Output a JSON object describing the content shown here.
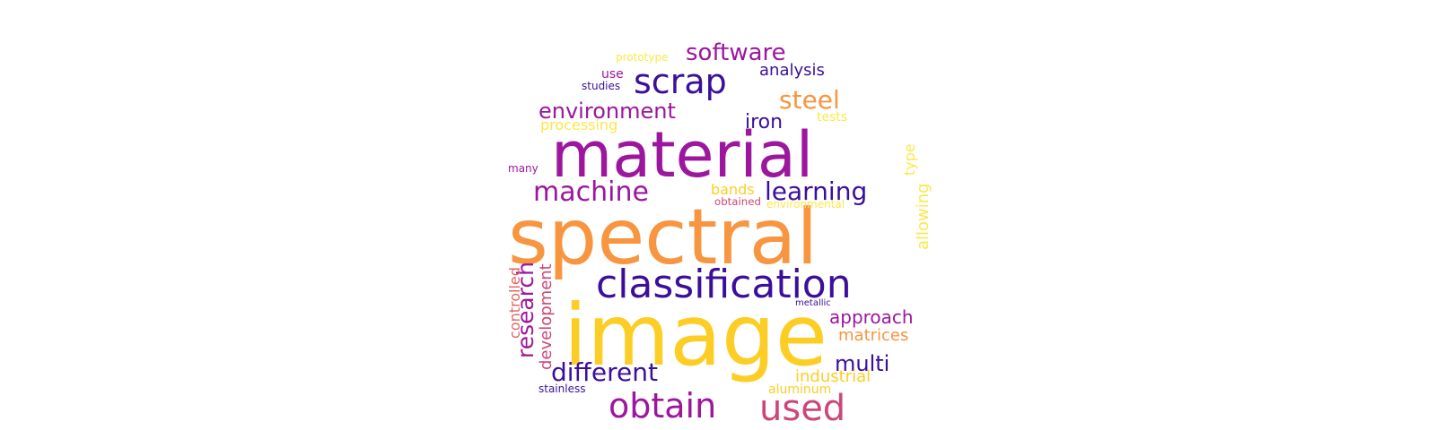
{
  "word_cloud": {
    "palette": {
      "purple": "#9c179e",
      "indigo": "#3b0f9a",
      "orange": "#f89540",
      "yellow": "#fcce25",
      "magenta": "#cc4778",
      "pink": "#e16462",
      "light_yellow": "#fde74c"
    },
    "words": [
      {
        "text": "spectral",
        "color": "orange"
      },
      {
        "text": "material",
        "color": "purple"
      },
      {
        "text": "image",
        "color": "yellow"
      },
      {
        "text": "classification",
        "color": "indigo"
      },
      {
        "text": "scrap",
        "color": "indigo"
      },
      {
        "text": "obtain",
        "color": "purple"
      },
      {
        "text": "used",
        "color": "magenta"
      },
      {
        "text": "machine",
        "color": "purple"
      },
      {
        "text": "learning",
        "color": "indigo"
      },
      {
        "text": "software",
        "color": "purple"
      },
      {
        "text": "environment",
        "color": "purple"
      },
      {
        "text": "steel",
        "color": "orange"
      },
      {
        "text": "iron",
        "color": "indigo"
      },
      {
        "text": "analysis",
        "color": "indigo"
      },
      {
        "text": "different",
        "color": "indigo"
      },
      {
        "text": "multi",
        "color": "indigo"
      },
      {
        "text": "approach",
        "color": "purple"
      },
      {
        "text": "research",
        "color": "purple"
      },
      {
        "text": "matrices",
        "color": "orange"
      },
      {
        "text": "industrial",
        "color": "yellow"
      },
      {
        "text": "bands",
        "color": "yellow"
      },
      {
        "text": "development",
        "color": "magenta"
      },
      {
        "text": "processing",
        "color": "light_yellow"
      },
      {
        "text": "tests",
        "color": "light_yellow"
      },
      {
        "text": "prototype",
        "color": "light_yellow"
      },
      {
        "text": "use",
        "color": "purple"
      },
      {
        "text": "studies",
        "color": "indigo"
      },
      {
        "text": "allowing",
        "color": "light_yellow"
      },
      {
        "text": "controlled",
        "color": "pink"
      },
      {
        "text": "aluminum",
        "color": "yellow"
      },
      {
        "text": "stainless",
        "color": "indigo"
      },
      {
        "text": "obtained",
        "color": "magenta"
      },
      {
        "text": "environmental",
        "color": "light_yellow"
      },
      {
        "text": "many",
        "color": "purple"
      },
      {
        "text": "type",
        "color": "light_yellow"
      },
      {
        "text": "metallic",
        "color": "indigo"
      }
    ]
  }
}
